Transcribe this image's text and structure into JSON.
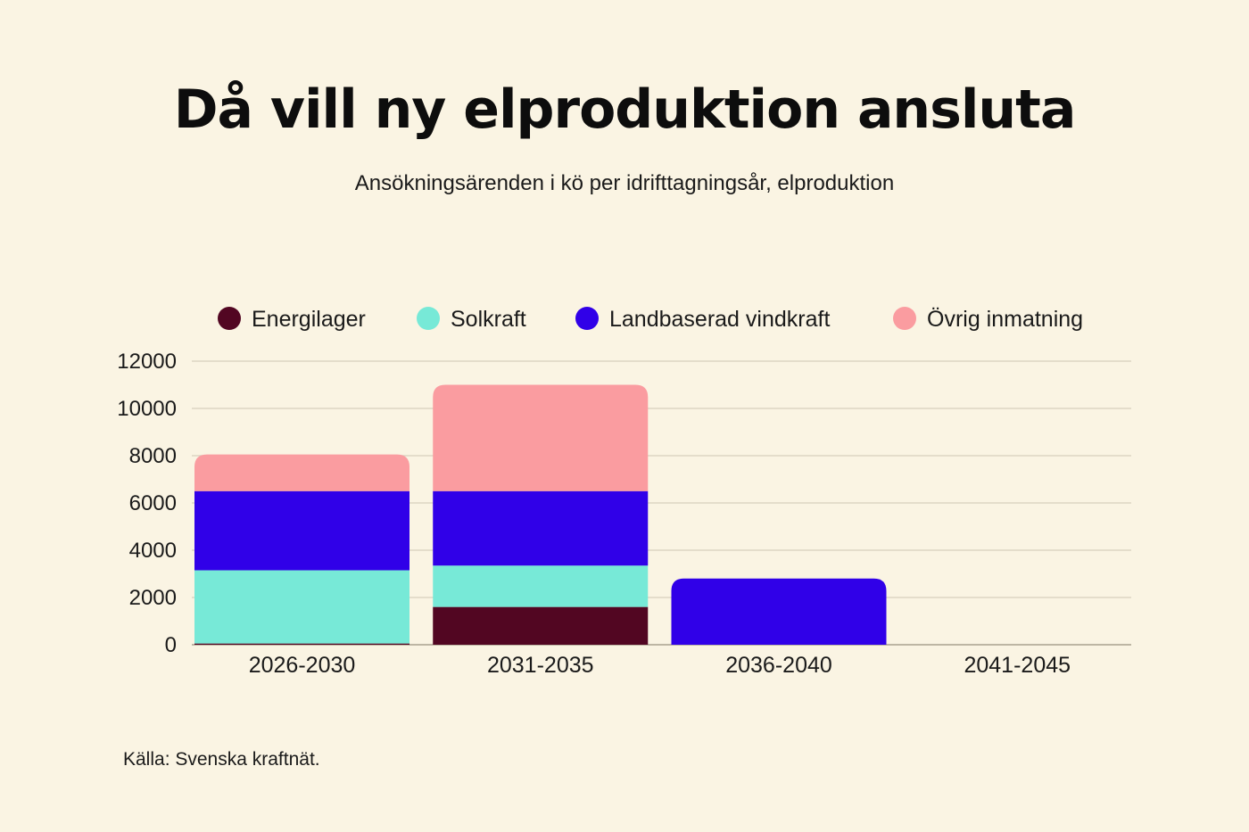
{
  "title": "Då vill ny elproduktion ansluta",
  "subtitle": "Ansökningsärenden i kö per idrifttagningsår, elproduktion",
  "source": "Källa: Svenska kraftnät.",
  "chart_data": {
    "type": "bar",
    "stacked": true,
    "categories": [
      "2026-2030",
      "2031-2035",
      "2036-2040",
      "2041-2045"
    ],
    "series": [
      {
        "name": "Energilager",
        "color": "#520622",
        "values": [
          50,
          1600,
          0,
          0
        ]
      },
      {
        "name": "Solkraft",
        "color": "#77e9d7",
        "values": [
          3100,
          1750,
          0,
          0
        ]
      },
      {
        "name": "Landbaserad vindkraft",
        "color": "#3000e8",
        "values": [
          3350,
          3150,
          2800,
          0
        ]
      },
      {
        "name": "Övrig inmatning",
        "color": "#fa9ca0",
        "values": [
          1550,
          4500,
          0,
          0
        ]
      }
    ],
    "ylim": [
      0,
      12000
    ],
    "yticks": [
      0,
      2000,
      4000,
      6000,
      8000,
      10000,
      12000
    ],
    "grid": true,
    "legend_position": "top"
  }
}
